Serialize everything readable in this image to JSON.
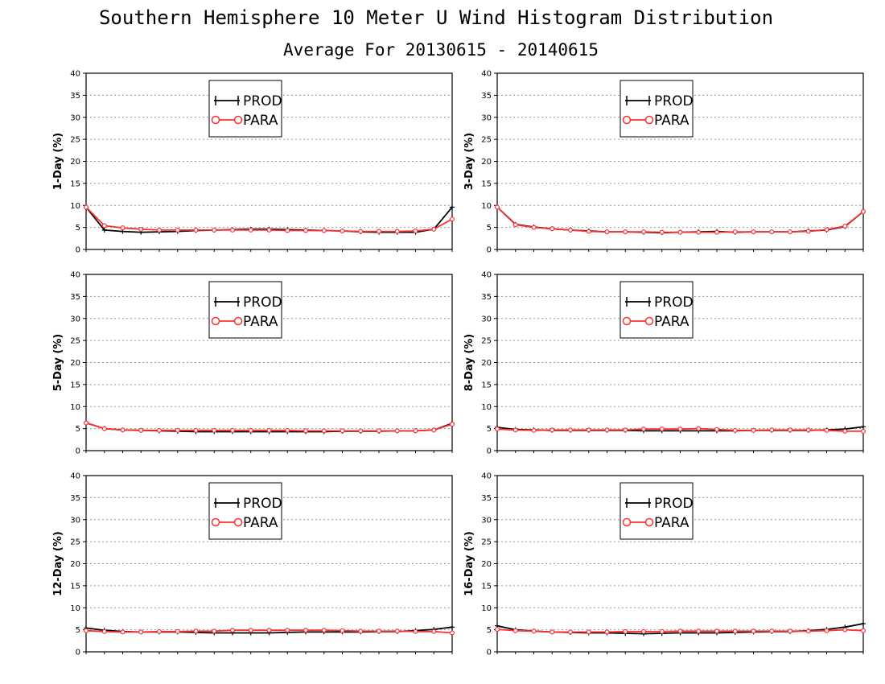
{
  "title": "Southern Hemisphere 10 Meter U Wind Histogram Distribution",
  "subtitle": "Average For 20130615 - 20140615",
  "colors": {
    "PROD": "#000000",
    "PARA": "#ff3030",
    "grid": "#9a9a9a"
  },
  "legend": {
    "position": "top-left",
    "entries": [
      "PROD",
      "PARA"
    ]
  },
  "chart_data": [
    {
      "type": "line",
      "ylabel": "1-Day (%)",
      "ylim": [
        0,
        40
      ],
      "yticks": [
        0,
        5,
        10,
        15,
        20,
        25,
        30,
        35,
        40
      ],
      "grid": "y-dotted",
      "x": [
        1,
        2,
        3,
        4,
        5,
        6,
        7,
        8,
        9,
        10,
        11,
        12,
        13,
        14,
        15,
        16,
        17,
        18,
        19,
        20,
        21
      ],
      "series": [
        {
          "name": "PROD",
          "values": [
            9.6,
            4.4,
            4.1,
            3.9,
            4.0,
            4.1,
            4.3,
            4.4,
            4.5,
            4.6,
            4.6,
            4.5,
            4.4,
            4.3,
            4.2,
            4.0,
            3.9,
            3.9,
            3.9,
            4.6,
            9.6
          ]
        },
        {
          "name": "PARA",
          "values": [
            9.6,
            5.4,
            4.9,
            4.6,
            4.4,
            4.4,
            4.4,
            4.4,
            4.4,
            4.4,
            4.4,
            4.3,
            4.3,
            4.3,
            4.2,
            4.1,
            4.1,
            4.1,
            4.2,
            4.6,
            6.9
          ]
        }
      ]
    },
    {
      "type": "line",
      "ylabel": "3-Day (%)",
      "ylim": [
        0,
        40
      ],
      "yticks": [
        0,
        5,
        10,
        15,
        20,
        25,
        30,
        35,
        40
      ],
      "grid": "y-dotted",
      "x": [
        1,
        2,
        3,
        4,
        5,
        6,
        7,
        8,
        9,
        10,
        11,
        12,
        13,
        14,
        15,
        16,
        17,
        18,
        19,
        20,
        21
      ],
      "series": [
        {
          "name": "PROD",
          "values": [
            9.6,
            5.7,
            5.1,
            4.7,
            4.4,
            4.2,
            4.0,
            4.0,
            3.9,
            3.8,
            3.9,
            4.0,
            4.1,
            3.9,
            4.0,
            4.0,
            4.0,
            4.2,
            4.4,
            5.2,
            8.6
          ]
        },
        {
          "name": "PARA",
          "values": [
            9.6,
            5.6,
            5.0,
            4.7,
            4.4,
            4.1,
            4.0,
            4.0,
            4.0,
            3.9,
            3.9,
            3.9,
            3.9,
            4.0,
            4.0,
            4.0,
            4.0,
            4.1,
            4.5,
            5.3,
            8.6
          ]
        }
      ]
    },
    {
      "type": "line",
      "ylabel": "5-Day (%)",
      "ylim": [
        0,
        40
      ],
      "yticks": [
        0,
        5,
        10,
        15,
        20,
        25,
        30,
        35,
        40
      ],
      "grid": "y-dotted",
      "x": [
        1,
        2,
        3,
        4,
        5,
        6,
        7,
        8,
        9,
        10,
        11,
        12,
        13,
        14,
        15,
        16,
        17,
        18,
        19,
        20,
        21
      ],
      "series": [
        {
          "name": "PROD",
          "values": [
            6.3,
            5.0,
            4.7,
            4.6,
            4.5,
            4.4,
            4.3,
            4.3,
            4.3,
            4.3,
            4.3,
            4.3,
            4.3,
            4.3,
            4.4,
            4.4,
            4.4,
            4.5,
            4.5,
            4.7,
            6.2
          ]
        },
        {
          "name": "PARA",
          "values": [
            6.3,
            5.0,
            4.7,
            4.6,
            4.6,
            4.6,
            4.6,
            4.6,
            4.6,
            4.6,
            4.6,
            4.6,
            4.5,
            4.5,
            4.5,
            4.5,
            4.5,
            4.5,
            4.5,
            4.7,
            6.0
          ]
        }
      ]
    },
    {
      "type": "line",
      "ylabel": "8-Day (%)",
      "ylim": [
        0,
        40
      ],
      "yticks": [
        0,
        5,
        10,
        15,
        20,
        25,
        30,
        35,
        40
      ],
      "grid": "y-dotted",
      "x": [
        1,
        2,
        3,
        4,
        5,
        6,
        7,
        8,
        9,
        10,
        11,
        12,
        13,
        14,
        15,
        16,
        17,
        18,
        19,
        20,
        21
      ],
      "series": [
        {
          "name": "PROD",
          "values": [
            5.3,
            4.8,
            4.7,
            4.6,
            4.6,
            4.6,
            4.6,
            4.6,
            4.5,
            4.5,
            4.5,
            4.5,
            4.5,
            4.5,
            4.6,
            4.6,
            4.6,
            4.6,
            4.7,
            4.9,
            5.4
          ]
        },
        {
          "name": "PARA",
          "values": [
            4.9,
            4.7,
            4.6,
            4.7,
            4.7,
            4.7,
            4.7,
            4.7,
            4.9,
            4.9,
            4.9,
            5.0,
            4.8,
            4.6,
            4.6,
            4.7,
            4.7,
            4.7,
            4.6,
            4.4,
            4.4
          ]
        }
      ]
    },
    {
      "type": "line",
      "ylabel": "12-Day (%)",
      "ylim": [
        0,
        40
      ],
      "yticks": [
        0,
        5,
        10,
        15,
        20,
        25,
        30,
        35,
        40
      ],
      "grid": "y-dotted",
      "x": [
        1,
        2,
        3,
        4,
        5,
        6,
        7,
        8,
        9,
        10,
        11,
        12,
        13,
        14,
        15,
        16,
        17,
        18,
        19,
        20,
        21
      ],
      "series": [
        {
          "name": "PROD",
          "values": [
            5.4,
            4.9,
            4.6,
            4.5,
            4.5,
            4.5,
            4.4,
            4.3,
            4.3,
            4.3,
            4.3,
            4.4,
            4.5,
            4.5,
            4.5,
            4.5,
            4.6,
            4.6,
            4.8,
            5.1,
            5.6
          ]
        },
        {
          "name": "PARA",
          "values": [
            4.8,
            4.6,
            4.5,
            4.5,
            4.6,
            4.6,
            4.7,
            4.7,
            4.9,
            4.9,
            4.9,
            4.9,
            4.9,
            4.9,
            4.8,
            4.7,
            4.7,
            4.7,
            4.6,
            4.6,
            4.3
          ]
        }
      ]
    },
    {
      "type": "line",
      "ylabel": "16-Day (%)",
      "ylim": [
        0,
        40
      ],
      "yticks": [
        0,
        5,
        10,
        15,
        20,
        25,
        30,
        35,
        40
      ],
      "grid": "y-dotted",
      "x": [
        1,
        2,
        3,
        4,
        5,
        6,
        7,
        8,
        9,
        10,
        11,
        12,
        13,
        14,
        15,
        16,
        17,
        18,
        19,
        20,
        21
      ],
      "series": [
        {
          "name": "PROD",
          "values": [
            5.9,
            5.0,
            4.7,
            4.5,
            4.4,
            4.3,
            4.3,
            4.2,
            4.1,
            4.2,
            4.3,
            4.3,
            4.3,
            4.4,
            4.5,
            4.6,
            4.6,
            4.8,
            5.1,
            5.6,
            6.4
          ]
        },
        {
          "name": "PARA",
          "values": [
            5.1,
            4.8,
            4.7,
            4.5,
            4.5,
            4.5,
            4.5,
            4.6,
            4.6,
            4.6,
            4.7,
            4.7,
            4.7,
            4.7,
            4.7,
            4.7,
            4.7,
            4.7,
            4.8,
            5.0,
            4.8
          ]
        }
      ]
    }
  ]
}
